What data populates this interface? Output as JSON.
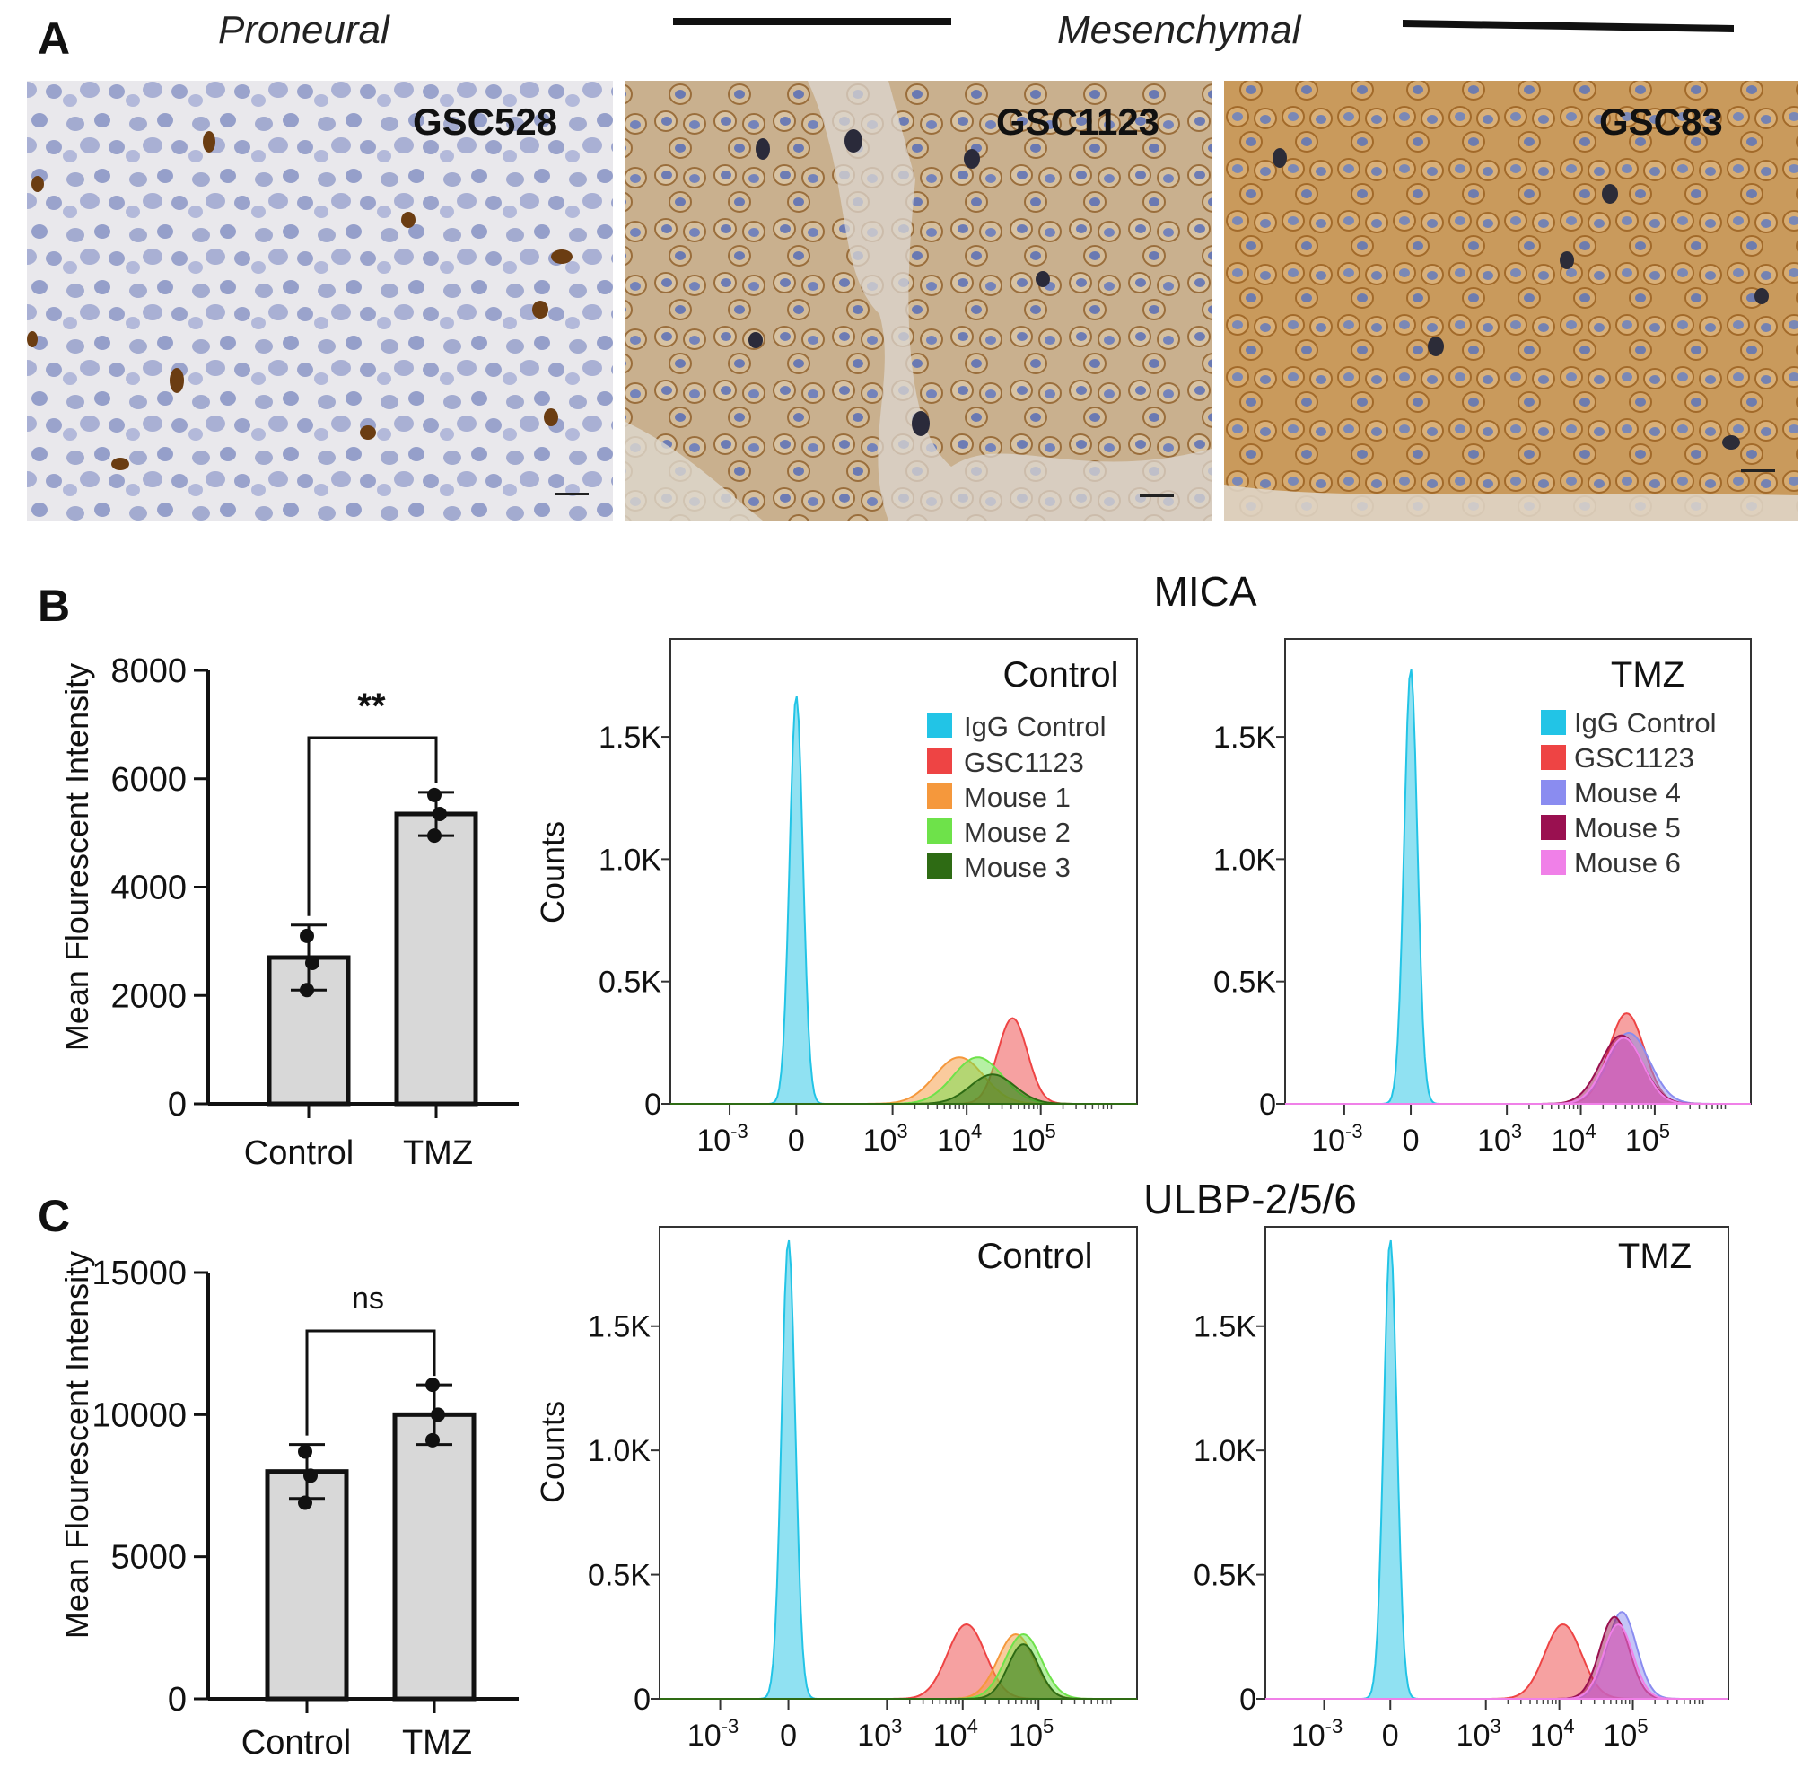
{
  "panel_labels": {
    "a": "A",
    "b": "B",
    "c": "C"
  },
  "panel_a": {
    "subtype_proneural": "Proneural",
    "subtype_mesenchymal": "Mesenchymal",
    "images": [
      {
        "label": "GSC528",
        "staining": "low"
      },
      {
        "label": "GSC1123",
        "staining": "medium"
      },
      {
        "label": "GSC83",
        "staining": "high"
      }
    ]
  },
  "colors": {
    "bar_fill": "#d8d8d8",
    "igg": "#22c4e6",
    "gsc1123": "#ee4444",
    "mouse1": "#f5983c",
    "mouse2": "#6ee24a",
    "mouse3": "#2e6b14",
    "mouse4": "#8a8cf0",
    "mouse5": "#9a1050",
    "mouse6": "#f080e8"
  },
  "chart_data": [
    {
      "id": "bar_mica",
      "type": "bar",
      "ylabel": "Mean Flourescent Intensity",
      "categories": [
        "Control",
        "TMZ"
      ],
      "values": [
        2700,
        5350
      ],
      "errors": [
        600,
        400
      ],
      "points": [
        [
          3100,
          2600,
          2100
        ],
        [
          5700,
          5350,
          4950
        ]
      ],
      "ylim": [
        0,
        8000
      ],
      "yticks": [
        0,
        2000,
        4000,
        6000,
        8000
      ],
      "significance": "**"
    },
    {
      "id": "bar_ulbp",
      "type": "bar",
      "ylabel": "Mean Flourescent Intensity",
      "categories": [
        "Control",
        "TMZ"
      ],
      "values": [
        8000,
        10000
      ],
      "errors": [
        950,
        1050
      ],
      "points": [
        [
          8700,
          7850,
          6900
        ],
        [
          11050,
          10000,
          9100
        ]
      ],
      "ylim": [
        0,
        15000
      ],
      "yticks": [
        0,
        5000,
        10000,
        15000
      ],
      "significance": "ns"
    },
    {
      "id": "hist_mica_control",
      "type": "area",
      "section_title": "MICA",
      "title": "Control",
      "ylabel": "Counts",
      "ylim": [
        0,
        1.9
      ],
      "yticks": [
        "0",
        "0.5K",
        "1.0K",
        "1.5K"
      ],
      "xticks": [
        "10",
        "0",
        "10",
        "10",
        "10"
      ],
      "xtick_exponents": [
        "-3",
        "",
        "3",
        "4",
        "5"
      ],
      "legend": [
        "IgG Control",
        "GSC1123",
        "Mouse 1",
        "Mouse 2",
        "Mouse 3"
      ],
      "series": [
        {
          "name": "IgG Control",
          "center": 0.9,
          "width": 0.09,
          "peak": 1.67
        },
        {
          "name": "GSC1123",
          "center": 3.82,
          "width": 0.2,
          "peak": 0.35
        },
        {
          "name": "Mouse 1",
          "center": 3.1,
          "width": 0.33,
          "peak": 0.19
        },
        {
          "name": "Mouse 2",
          "center": 3.35,
          "width": 0.33,
          "peak": 0.19
        },
        {
          "name": "Mouse 3",
          "center": 3.55,
          "width": 0.3,
          "peak": 0.12
        }
      ]
    },
    {
      "id": "hist_mica_tmz",
      "type": "area",
      "title": "TMZ",
      "ylabel": "",
      "ylim": [
        0,
        1.9
      ],
      "yticks": [
        "0",
        "0.5K",
        "1.0K",
        "1.5K"
      ],
      "xticks": [
        "10",
        "0",
        "10",
        "10",
        "10"
      ],
      "xtick_exponents": [
        "-3",
        "",
        "3",
        "4",
        "5"
      ],
      "legend": [
        "IgG Control",
        "GSC1123",
        "Mouse 4",
        "Mouse 5",
        "Mouse 6"
      ],
      "series": [
        {
          "name": "IgG Control",
          "center": 0.9,
          "width": 0.09,
          "peak": 1.78
        },
        {
          "name": "GSC1123",
          "center": 3.82,
          "width": 0.24,
          "peak": 0.37
        },
        {
          "name": "Mouse 4",
          "center": 3.85,
          "width": 0.28,
          "peak": 0.29
        },
        {
          "name": "Mouse 5",
          "center": 3.75,
          "width": 0.28,
          "peak": 0.28
        },
        {
          "name": "Mouse 6",
          "center": 3.78,
          "width": 0.26,
          "peak": 0.27
        }
      ]
    },
    {
      "id": "hist_ulbp_control",
      "type": "area",
      "section_title": "ULBP-2/5/6",
      "title": "Control",
      "ylabel": "Counts",
      "ylim": [
        0,
        1.9
      ],
      "yticks": [
        "0",
        "0.5K",
        "1.0K",
        "1.5K"
      ],
      "xticks": [
        "10",
        "0",
        "10",
        "10",
        "10"
      ],
      "xtick_exponents": [
        "-3",
        "",
        "3",
        "4",
        "5"
      ],
      "legend": [],
      "series": [
        {
          "name": "IgG Control",
          "center": 0.9,
          "width": 0.09,
          "peak": 1.85
        },
        {
          "name": "GSC1123",
          "center": 3.25,
          "width": 0.25,
          "peak": 0.3
        },
        {
          "name": "Mouse 1",
          "center": 3.9,
          "width": 0.24,
          "peak": 0.26
        },
        {
          "name": "Mouse 2",
          "center": 4.0,
          "width": 0.24,
          "peak": 0.26
        },
        {
          "name": "Mouse 3",
          "center": 4.0,
          "width": 0.2,
          "peak": 0.22
        }
      ]
    },
    {
      "id": "hist_ulbp_tmz",
      "type": "area",
      "title": "TMZ",
      "ylabel": "",
      "ylim": [
        0,
        1.9
      ],
      "yticks": [
        "0",
        "0.5K",
        "1.0K",
        "1.5K"
      ],
      "xticks": [
        "10",
        "0",
        "10",
        "10",
        "10"
      ],
      "xtick_exponents": [
        "-3",
        "",
        "3",
        "4",
        "5"
      ],
      "legend": [],
      "series": [
        {
          "name": "IgG Control",
          "center": 0.9,
          "width": 0.09,
          "peak": 1.85
        },
        {
          "name": "GSC1123",
          "center": 3.25,
          "width": 0.25,
          "peak": 0.3
        },
        {
          "name": "Mouse 4",
          "center": 4.05,
          "width": 0.2,
          "peak": 0.35
        },
        {
          "name": "Mouse 5",
          "center": 3.95,
          "width": 0.2,
          "peak": 0.33
        },
        {
          "name": "Mouse 6",
          "center": 4.0,
          "width": 0.2,
          "peak": 0.3
        }
      ]
    }
  ]
}
